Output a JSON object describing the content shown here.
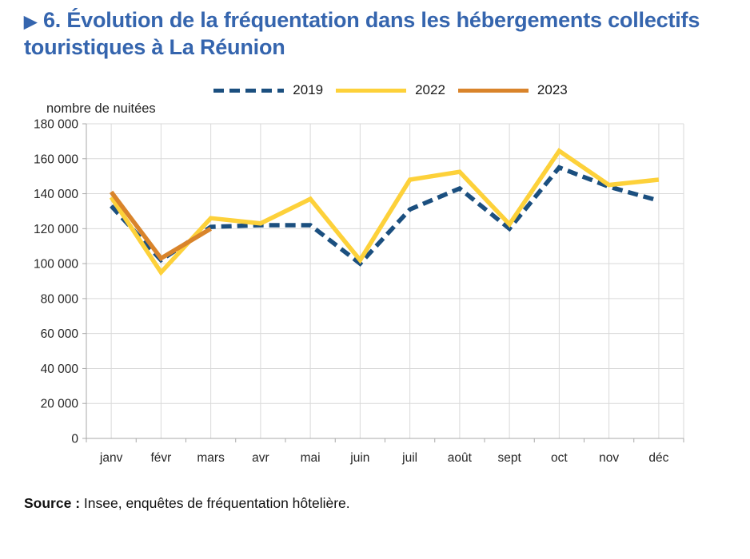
{
  "header": {
    "marker": "▶",
    "title": "6. Évolution de la fréquentation dans les hébergements collectifs touristiques à La Réunion"
  },
  "colors": {
    "title_blue": "#3565ae",
    "series_2019": "#1b4f7f",
    "series_2022": "#fdd13a",
    "series_2023": "#d9842b",
    "grid": "#d9d9d9",
    "axis": "#a9a9a9",
    "tick_text": "#262626"
  },
  "chart_data": {
    "type": "line",
    "ylabel": "nombre de nuitées",
    "categories": [
      "janv",
      "févr",
      "mars",
      "avr",
      "mai",
      "juin",
      "juil",
      "août",
      "sept",
      "oct",
      "nov",
      "déc"
    ],
    "ylim": [
      0,
      180000
    ],
    "ytick_step": 20000,
    "y_tick_labels": [
      "0",
      "20 000",
      "40 000",
      "60 000",
      "80 000",
      "100 000",
      "120 000",
      "140 000",
      "160 000",
      "180 000"
    ],
    "grid": true,
    "legend_position": "top",
    "series": [
      {
        "name": "2019",
        "style": "dashed",
        "color": "#1b4f7f",
        "values": [
          133000,
          102000,
          121000,
          122000,
          122000,
          100000,
          131000,
          143000,
          120000,
          155000,
          144000,
          136000
        ]
      },
      {
        "name": "2022",
        "style": "solid",
        "color": "#fdd13a",
        "values": [
          138000,
          95000,
          126000,
          123000,
          137000,
          102000,
          148000,
          152500,
          122500,
          164500,
          145000,
          148000
        ]
      },
      {
        "name": "2023",
        "style": "solid",
        "color": "#d9842b",
        "values": [
          141000,
          103000,
          120000
        ]
      }
    ]
  },
  "source": {
    "label": "Source :",
    "text": "Insee, enquêtes de fréquentation hôtelière."
  }
}
